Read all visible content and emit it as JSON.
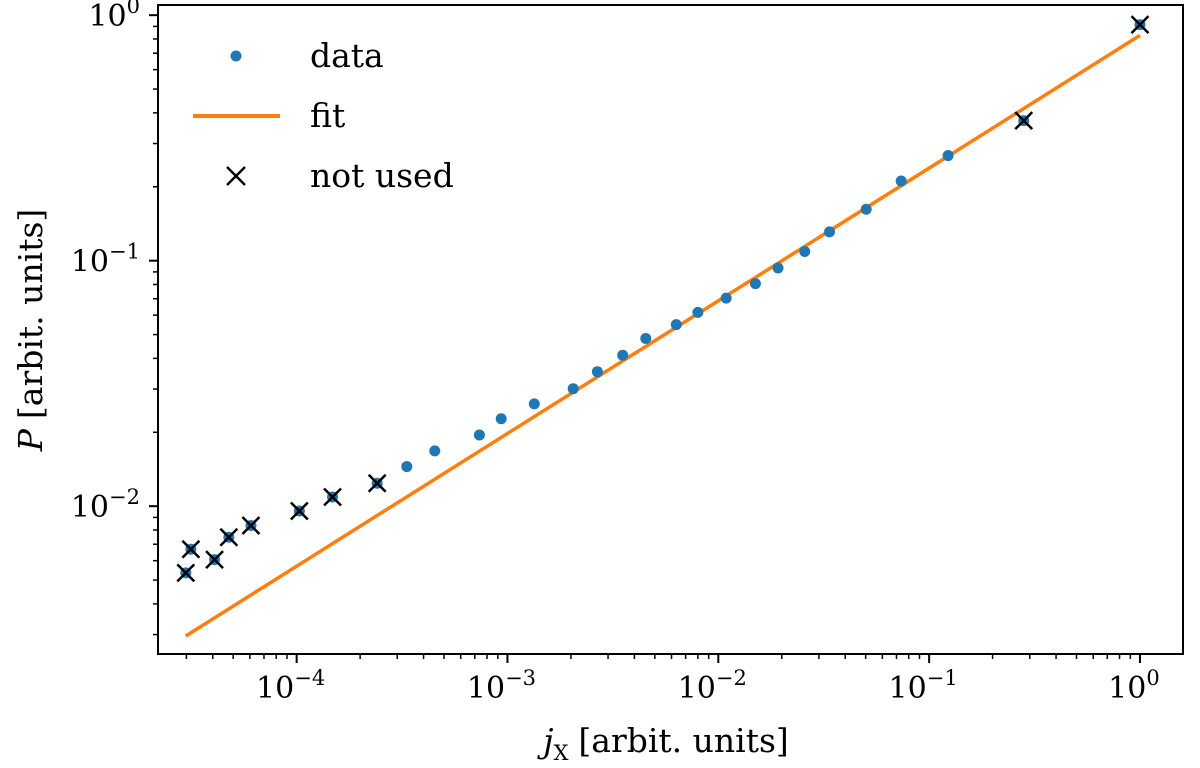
{
  "chart_data": {
    "type": "scatter",
    "x_scale": "log",
    "y_scale": "log",
    "xlim": [
      2.2e-05,
      1.6
    ],
    "ylim": [
      0.0025,
      1.1
    ],
    "xlabel": {
      "var": "j",
      "sub": "X",
      "units": "[arbit. units]"
    },
    "ylabel": {
      "var": "P",
      "units": "[arbit. units]"
    },
    "x_ticks": [
      {
        "value": 0.0001,
        "base": "10",
        "exp": "−4"
      },
      {
        "value": 0.001,
        "base": "10",
        "exp": "−3"
      },
      {
        "value": 0.01,
        "base": "10",
        "exp": "−2"
      },
      {
        "value": 0.1,
        "base": "10",
        "exp": "−1"
      },
      {
        "value": 1,
        "base": "10",
        "exp": "0"
      }
    ],
    "y_ticks": [
      {
        "value": 0.01,
        "base": "10",
        "exp": "−2"
      },
      {
        "value": 0.1,
        "base": "10",
        "exp": "−1"
      },
      {
        "value": 1,
        "base": "10",
        "exp": "0"
      }
    ],
    "legend": {
      "placement": "top-left",
      "entries": [
        {
          "label": "data",
          "marker": "dot",
          "color": "#1f77b4"
        },
        {
          "label": "fit",
          "marker": "line",
          "color": "#ff7f0e"
        },
        {
          "label": "not used",
          "marker": "x",
          "color": "#000000"
        }
      ]
    },
    "series": [
      {
        "name": "data",
        "color": "#1f77b4",
        "x": [
          2.98e-05,
          3.15e-05,
          4.08e-05,
          4.77e-05,
          6.07e-05,
          0.000103,
          0.000148,
          0.000241,
          0.000333,
          0.000452,
          0.000736,
          0.000934,
          0.00134,
          0.00205,
          0.00267,
          0.00352,
          0.00453,
          0.00632,
          0.008,
          0.0109,
          0.015,
          0.0192,
          0.0257,
          0.0337,
          0.0503,
          0.0737,
          0.123,
          0.281,
          1.0
        ],
        "y": [
          0.00535,
          0.00668,
          0.00606,
          0.00747,
          0.00834,
          0.00956,
          0.0109,
          0.0124,
          0.0145,
          0.0168,
          0.0195,
          0.0227,
          0.0261,
          0.0301,
          0.0353,
          0.0412,
          0.0482,
          0.0549,
          0.0616,
          0.0704,
          0.0806,
          0.0934,
          0.109,
          0.131,
          0.162,
          0.211,
          0.268,
          0.372,
          0.915
        ]
      },
      {
        "name": "fit",
        "color": "#ff7f0e",
        "x": [
          2.98e-05,
          1.0
        ],
        "y": [
          0.00296,
          0.827
        ]
      },
      {
        "name": "not used",
        "color": "#000000",
        "x": [
          2.98e-05,
          3.15e-05,
          4.08e-05,
          4.77e-05,
          6.07e-05,
          0.000103,
          0.000148,
          0.000241,
          0.281,
          1.0
        ],
        "y": [
          0.00535,
          0.00668,
          0.00606,
          0.00747,
          0.00834,
          0.00956,
          0.0109,
          0.0124,
          0.372,
          0.915
        ]
      }
    ]
  }
}
